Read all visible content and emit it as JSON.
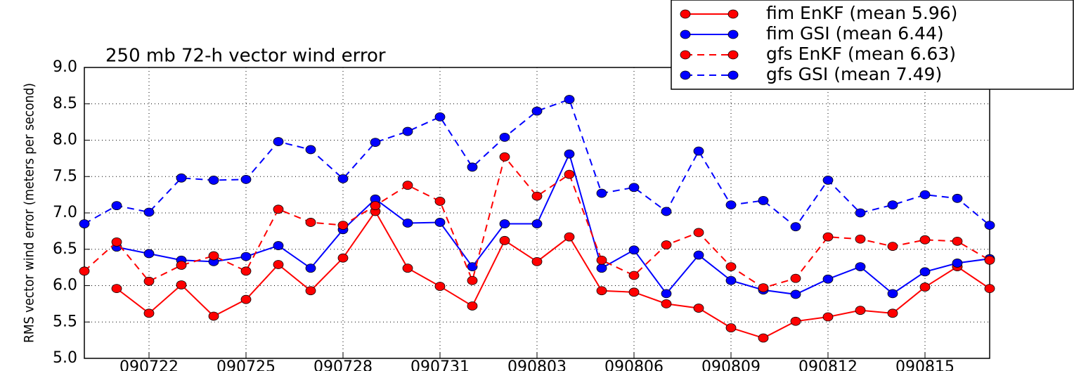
{
  "chart_data": {
    "type": "line",
    "title": "250 mb 72-h vector wind error",
    "ylabel": "RMS vector wind error (meters per second)",
    "categories": [
      null,
      null,
      "090722",
      null,
      null,
      "090725",
      null,
      null,
      "090728",
      null,
      null,
      "090731",
      null,
      null,
      "090803",
      null,
      null,
      "090806",
      null,
      null,
      "090809",
      null,
      null,
      "090812",
      null,
      null,
      "090815",
      null,
      null
    ],
    "ylim": [
      5.0,
      9.0
    ],
    "yticks": [
      {
        "value": 5.0,
        "label": "5.0"
      },
      5.5,
      {
        "value": 6.0,
        "label": "6.0"
      },
      6.5,
      {
        "value": 7.0,
        "label": "7.0"
      },
      7.5,
      {
        "value": 8.0,
        "label": "8.0"
      },
      8.5,
      {
        "value": 9.0,
        "label": "9.0"
      }
    ],
    "grid": true,
    "legend": "upper right",
    "series": [
      {
        "name": "fim EnKF (mean 5.96)",
        "color": "#ff0000",
        "dashed": false,
        "values": [
          null,
          5.96,
          5.62,
          6.01,
          5.58,
          5.81,
          6.29,
          5.93,
          6.38,
          7.02,
          6.24,
          5.99,
          5.72,
          6.62,
          6.33,
          6.67,
          5.93,
          5.91,
          5.75,
          5.69,
          5.42,
          5.28,
          5.51,
          5.57,
          5.66,
          5.62,
          5.98,
          6.26,
          5.96
        ]
      },
      {
        "name": "fim GSI (mean 6.44)",
        "color": "#0000ff",
        "dashed": false,
        "values": [
          null,
          6.53,
          6.44,
          6.35,
          6.33,
          6.4,
          6.55,
          6.24,
          6.77,
          7.19,
          6.86,
          6.87,
          6.26,
          6.85,
          6.85,
          7.81,
          6.24,
          6.49,
          5.89,
          6.42,
          6.07,
          5.94,
          5.88,
          6.09,
          6.26,
          5.89,
          6.19,
          6.31,
          6.37
        ]
      },
      {
        "name": "gfs EnKF (mean 6.63)",
        "color": "#ff0000",
        "dashed": true,
        "values": [
          6.2,
          6.6,
          6.06,
          6.28,
          6.41,
          6.2,
          7.05,
          6.87,
          6.83,
          7.1,
          7.38,
          7.16,
          6.07,
          7.77,
          7.23,
          7.53,
          6.35,
          6.14,
          6.56,
          6.73,
          6.26,
          5.97,
          6.1,
          6.67,
          6.64,
          6.54,
          6.63,
          6.61,
          6.35
        ]
      },
      {
        "name": "gfs GSI (mean 7.49)",
        "color": "#0000ff",
        "dashed": true,
        "values": [
          6.85,
          7.1,
          7.01,
          7.48,
          7.45,
          7.46,
          7.98,
          7.87,
          7.47,
          7.97,
          8.12,
          8.32,
          7.63,
          8.04,
          8.4,
          8.56,
          7.27,
          7.35,
          7.02,
          7.85,
          7.11,
          7.17,
          6.81,
          7.45,
          7.0,
          7.11,
          7.25,
          7.2,
          6.83
        ]
      }
    ]
  }
}
